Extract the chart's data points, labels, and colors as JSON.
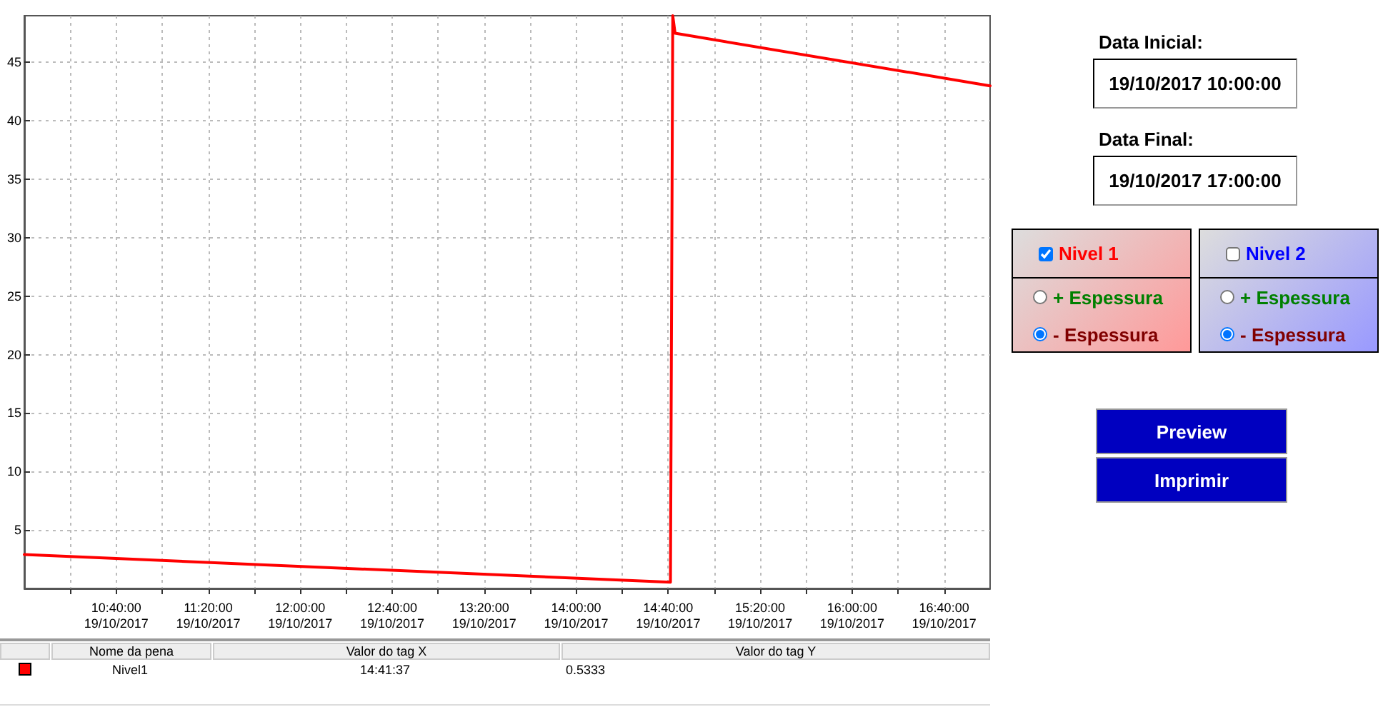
{
  "chart_data": {
    "type": "line",
    "x": [
      "2017-10-19T10:00",
      "2017-10-19T14:41",
      "2017-10-19T14:42",
      "2017-10-19T14:43",
      "2017-10-19T17:00"
    ],
    "series": [
      {
        "name": "Nivel1",
        "color": "#ff0000",
        "values": [
          2.9,
          0.5333,
          49,
          47.5,
          43.0
        ]
      }
    ],
    "xlim": [
      "2017-10-19T10:00",
      "2017-10-19T17:00"
    ],
    "xticks": [
      {
        "value": "2017-10-19T10:20",
        "label": null
      },
      {
        "value": "2017-10-19T10:40",
        "label": "10:40:00\n19/10/2017"
      },
      {
        "value": "2017-10-19T11:00",
        "label": null
      },
      {
        "value": "2017-10-19T11:20",
        "label": "11:20:00\n19/10/2017"
      },
      {
        "value": "2017-10-19T11:40",
        "label": null
      },
      {
        "value": "2017-10-19T12:00",
        "label": "12:00:00\n19/10/2017"
      },
      {
        "value": "2017-10-19T12:20",
        "label": null
      },
      {
        "value": "2017-10-19T12:40",
        "label": "12:40:00\n19/10/2017"
      },
      {
        "value": "2017-10-19T13:00",
        "label": null
      },
      {
        "value": "2017-10-19T13:20",
        "label": "13:20:00\n19/10/2017"
      },
      {
        "value": "2017-10-19T13:40",
        "label": null
      },
      {
        "value": "2017-10-19T14:00",
        "label": "14:00:00\n19/10/2017"
      },
      {
        "value": "2017-10-19T14:20",
        "label": null
      },
      {
        "value": "2017-10-19T14:40",
        "label": "14:40:00\n19/10/2017"
      },
      {
        "value": "2017-10-19T15:00",
        "label": null
      },
      {
        "value": "2017-10-19T15:20",
        "label": "15:20:00\n19/10/2017"
      },
      {
        "value": "2017-10-19T15:40",
        "label": null
      },
      {
        "value": "2017-10-19T16:00",
        "label": "16:00:00\n19/10/2017"
      },
      {
        "value": "2017-10-19T16:20",
        "label": null
      },
      {
        "value": "2017-10-19T16:40",
        "label": "16:40:00\n19/10/2017"
      }
    ],
    "ylim": [
      0,
      49
    ],
    "yticks": [
      5,
      10,
      15,
      20,
      25,
      30,
      35,
      40,
      45
    ],
    "grid": true,
    "legend": "bottom",
    "annotations": [
      "Data Inicial:",
      "19/10/2017 10:00:00",
      "Data Final:",
      "19/10/2017 17:00:00",
      "Nivel 1",
      "+ Espessura",
      "- Espessura",
      "Nivel 2",
      "+ Espessura",
      "- Espessura",
      "Preview",
      "Imprimir",
      "Nome da pena",
      "Valor do tag X",
      "Valor do tag Y",
      "14:41:37",
      "0.5333"
    ]
  }
}
